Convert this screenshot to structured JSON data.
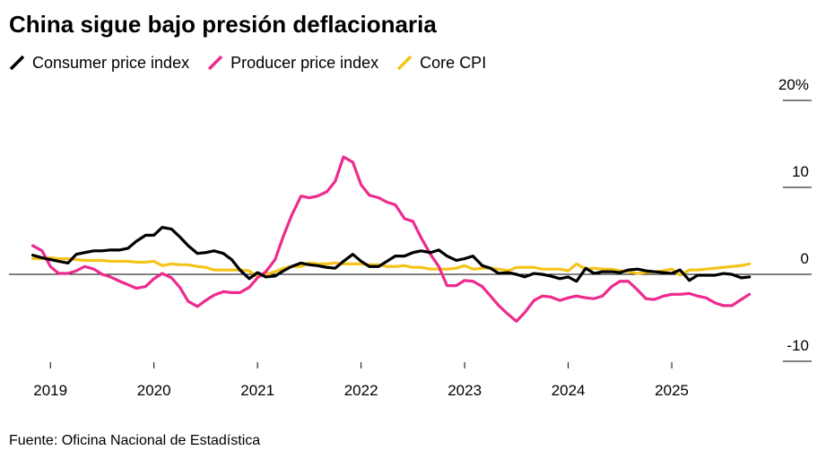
{
  "chart_data": {
    "type": "line",
    "title": "China sigue bajo presión deflacionaria",
    "source": "Fuente: Oficina Nacional de Estadística",
    "x": [
      2018.83,
      2018.92,
      2019,
      2019.08,
      2019.17,
      2019.25,
      2019.33,
      2019.42,
      2019.5,
      2019.58,
      2019.67,
      2019.75,
      2019.83,
      2019.92,
      2020,
      2020.08,
      2020.17,
      2020.25,
      2020.33,
      2020.42,
      2020.5,
      2020.58,
      2020.67,
      2020.75,
      2020.83,
      2020.92,
      2021,
      2021.08,
      2021.17,
      2021.25,
      2021.33,
      2021.42,
      2021.5,
      2021.58,
      2021.67,
      2021.75,
      2021.83,
      2021.92,
      2022,
      2022.08,
      2022.17,
      2022.25,
      2022.33,
      2022.42,
      2022.5,
      2022.58,
      2022.67,
      2022.75,
      2022.83,
      2022.92,
      2023,
      2023.08,
      2023.17,
      2023.25,
      2023.33,
      2023.42,
      2023.5,
      2023.58,
      2023.67,
      2023.75,
      2023.83,
      2023.92,
      2024,
      2024.08,
      2024.17,
      2024.25,
      2024.33,
      2024.42,
      2024.5,
      2024.58,
      2024.67,
      2024.75,
      2024.83,
      2024.92,
      2025,
      2025.08,
      2025.17,
      2025.25,
      2025.33,
      2025.42,
      2025.5,
      2025.58,
      2025.67,
      2025.75
    ],
    "series": [
      {
        "name": "Consumer price index",
        "color": "#000000",
        "values": [
          2.2,
          1.9,
          1.7,
          1.5,
          1.3,
          2.3,
          2.5,
          2.7,
          2.7,
          2.8,
          2.8,
          3.0,
          3.8,
          4.5,
          4.5,
          5.4,
          5.2,
          4.3,
          3.3,
          2.4,
          2.5,
          2.7,
          2.4,
          1.7,
          0.5,
          -0.5,
          0.2,
          -0.3,
          -0.2,
          0.4,
          0.9,
          1.3,
          1.1,
          1.0,
          0.8,
          0.7,
          1.5,
          2.3,
          1.5,
          0.9,
          0.9,
          1.5,
          2.1,
          2.1,
          2.5,
          2.7,
          2.5,
          2.8,
          2.1,
          1.6,
          1.8,
          2.1,
          1.0,
          0.7,
          0.1,
          0.2,
          0.0,
          -0.3,
          0.1,
          0.0,
          -0.2,
          -0.5,
          -0.3,
          -0.8,
          0.7,
          0.1,
          0.3,
          0.3,
          0.2,
          0.5,
          0.6,
          0.4,
          0.3,
          0.2,
          0.1,
          0.5,
          -0.7,
          -0.1,
          -0.1,
          -0.1,
          0.1,
          0.0,
          -0.4,
          -0.3
        ]
      },
      {
        "name": "Producer price index",
        "color": "#ee2a8e",
        "values": [
          3.3,
          2.7,
          0.9,
          0.1,
          0.1,
          0.4,
          0.9,
          0.6,
          0.0,
          -0.3,
          -0.8,
          -1.2,
          -1.6,
          -1.4,
          -0.5,
          0.1,
          -0.4,
          -1.5,
          -3.1,
          -3.7,
          -3.0,
          -2.4,
          -2.0,
          -2.1,
          -2.1,
          -1.5,
          -0.4,
          0.3,
          1.7,
          4.4,
          6.8,
          9.0,
          8.8,
          9.0,
          9.5,
          10.7,
          13.5,
          12.9,
          10.3,
          9.1,
          8.8,
          8.3,
          8.0,
          6.4,
          6.1,
          4.2,
          2.3,
          0.9,
          -1.3,
          -1.3,
          -0.7,
          -0.8,
          -1.4,
          -2.5,
          -3.6,
          -4.6,
          -5.4,
          -4.4,
          -3.0,
          -2.5,
          -2.6,
          -3.0,
          -2.7,
          -2.5,
          -2.7,
          -2.8,
          -2.5,
          -1.4,
          -0.8,
          -0.8,
          -1.8,
          -2.8,
          -2.9,
          -2.5,
          -2.3,
          -2.3,
          -2.2,
          -2.5,
          -2.7,
          -3.3,
          -3.6,
          -3.6,
          -2.9,
          -2.3
        ]
      },
      {
        "name": "Core CPI",
        "color": "#f5c41a",
        "values": [
          1.8,
          1.8,
          1.9,
          1.8,
          1.8,
          1.7,
          1.6,
          1.6,
          1.6,
          1.5,
          1.5,
          1.5,
          1.4,
          1.4,
          1.5,
          1.0,
          1.2,
          1.1,
          1.1,
          0.9,
          0.8,
          0.5,
          0.5,
          0.5,
          0.5,
          0.4,
          -0.3,
          0.0,
          0.3,
          0.7,
          0.9,
          0.9,
          1.3,
          1.2,
          1.2,
          1.3,
          1.2,
          1.2,
          1.2,
          1.1,
          1.1,
          0.9,
          0.9,
          1.0,
          0.8,
          0.8,
          0.6,
          0.6,
          0.6,
          0.7,
          1.0,
          0.6,
          0.7,
          0.7,
          0.6,
          0.4,
          0.8,
          0.8,
          0.8,
          0.6,
          0.6,
          0.6,
          0.4,
          1.2,
          0.6,
          0.7,
          0.6,
          0.6,
          0.4,
          0.3,
          0.1,
          0.2,
          0.3,
          0.4,
          0.6,
          -0.1,
          0.5,
          0.5,
          0.6,
          0.7,
          0.8,
          0.9,
          1.0,
          1.2
        ]
      }
    ],
    "xlim": [
      2018.6,
      2026.35
    ],
    "xticks": [
      2019,
      2020,
      2021,
      2022,
      2023,
      2024,
      2025
    ],
    "ylim": [
      -10,
      20
    ],
    "yticks": [
      {
        "value": 20,
        "label": "20%"
      },
      10,
      0,
      -10
    ]
  }
}
